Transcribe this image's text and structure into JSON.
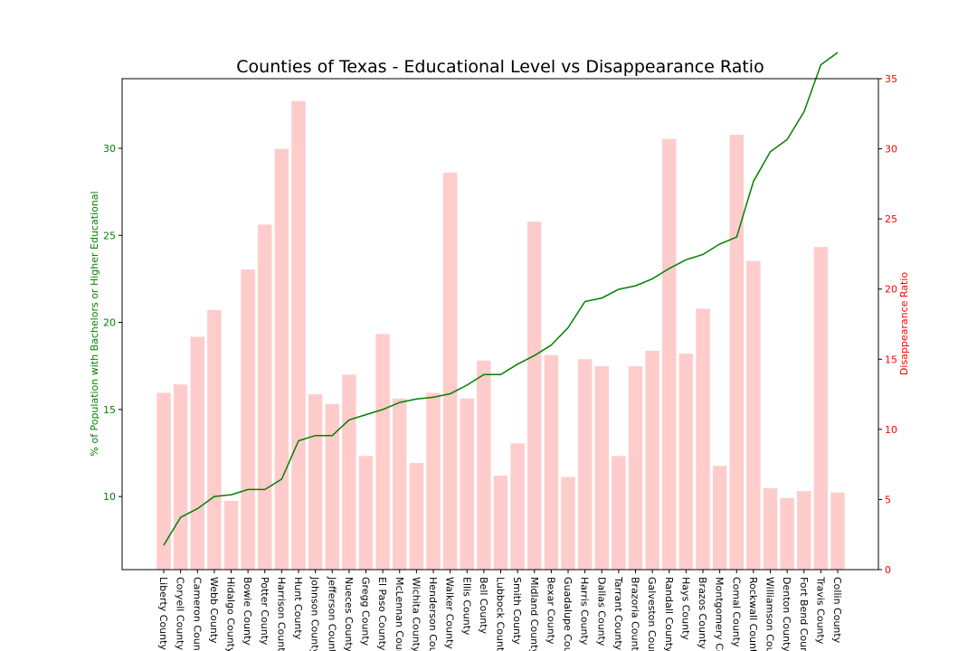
{
  "chart_data": {
    "type": "bar",
    "title": "Counties of Texas - Educational Level vs Disappearance Ratio",
    "categories": [
      "Liberty County",
      "Coryell County",
      "Cameron County",
      "Webb County",
      "Hidalgo County",
      "Bowie County",
      "Potter County",
      "Harrison County",
      "Hunt County",
      "Johnson County",
      "Jefferson County",
      "Nueces County",
      "Gregg County",
      "El Paso County",
      "McLennan County",
      "Wichita County",
      "Henderson County",
      "Walker County",
      "Ellis County",
      "Bell County",
      "Lubbock County",
      "Smith County",
      "Midland County",
      "Bexar County",
      "Guadalupe County",
      "Harris County",
      "Dallas County",
      "Tarrant County",
      "Brazoria County",
      "Galveston County",
      "Randall County",
      "Hays County",
      "Brazos County",
      "Montgomery County",
      "Comal County",
      "Rockwall County",
      "Williamson County",
      "Denton County",
      "Fort Bend County",
      "Travis County",
      "Collin County"
    ],
    "series": [
      {
        "name": "",
        "kind": "line",
        "axis": "left",
        "color": "#008000",
        "values": [
          7.2,
          8.8,
          9.3,
          10.0,
          10.1,
          10.4,
          10.4,
          11.0,
          13.2,
          13.5,
          13.5,
          14.4,
          14.7,
          15.0,
          15.4,
          15.6,
          15.7,
          15.9,
          16.4,
          17.0,
          17.0,
          17.6,
          18.1,
          18.7,
          19.7,
          21.2,
          21.4,
          21.9,
          22.1,
          22.5,
          23.1,
          23.6,
          23.9,
          24.5,
          24.9,
          28.1,
          29.8,
          30.5,
          32.1,
          34.8,
          35.5
        ]
      },
      {
        "name": "",
        "kind": "bar",
        "axis": "right",
        "color": "#ffcccc",
        "values": [
          12.6,
          13.2,
          16.6,
          18.5,
          4.9,
          21.4,
          24.6,
          30.0,
          33.4,
          12.5,
          11.8,
          13.9,
          8.1,
          16.8,
          12.2,
          7.6,
          12.6,
          28.3,
          12.2,
          14.9,
          6.7,
          9.0,
          24.8,
          15.3,
          6.6,
          15.0,
          14.5,
          8.1,
          14.5,
          15.6,
          30.7,
          15.4,
          18.6,
          7.4,
          31.0,
          22.0,
          5.8,
          5.1,
          5.6,
          23.0,
          5.5
        ]
      }
    ],
    "ylabel": "% of Population with Bachelors or Higher Educational",
    "ylabel_right": "Disappearance Ratio",
    "ylim": [
      5.8,
      34.0
    ],
    "ylim_right": [
      0,
      35
    ],
    "yticks": [
      "10",
      "15",
      "20",
      "25",
      "30"
    ],
    "yticks_right": [
      "0",
      "5",
      "10",
      "15",
      "20",
      "25",
      "30",
      "35"
    ],
    "left_axis_color": "#008000",
    "right_axis_color": "#ff0000",
    "grid": false,
    "legend": "none"
  }
}
